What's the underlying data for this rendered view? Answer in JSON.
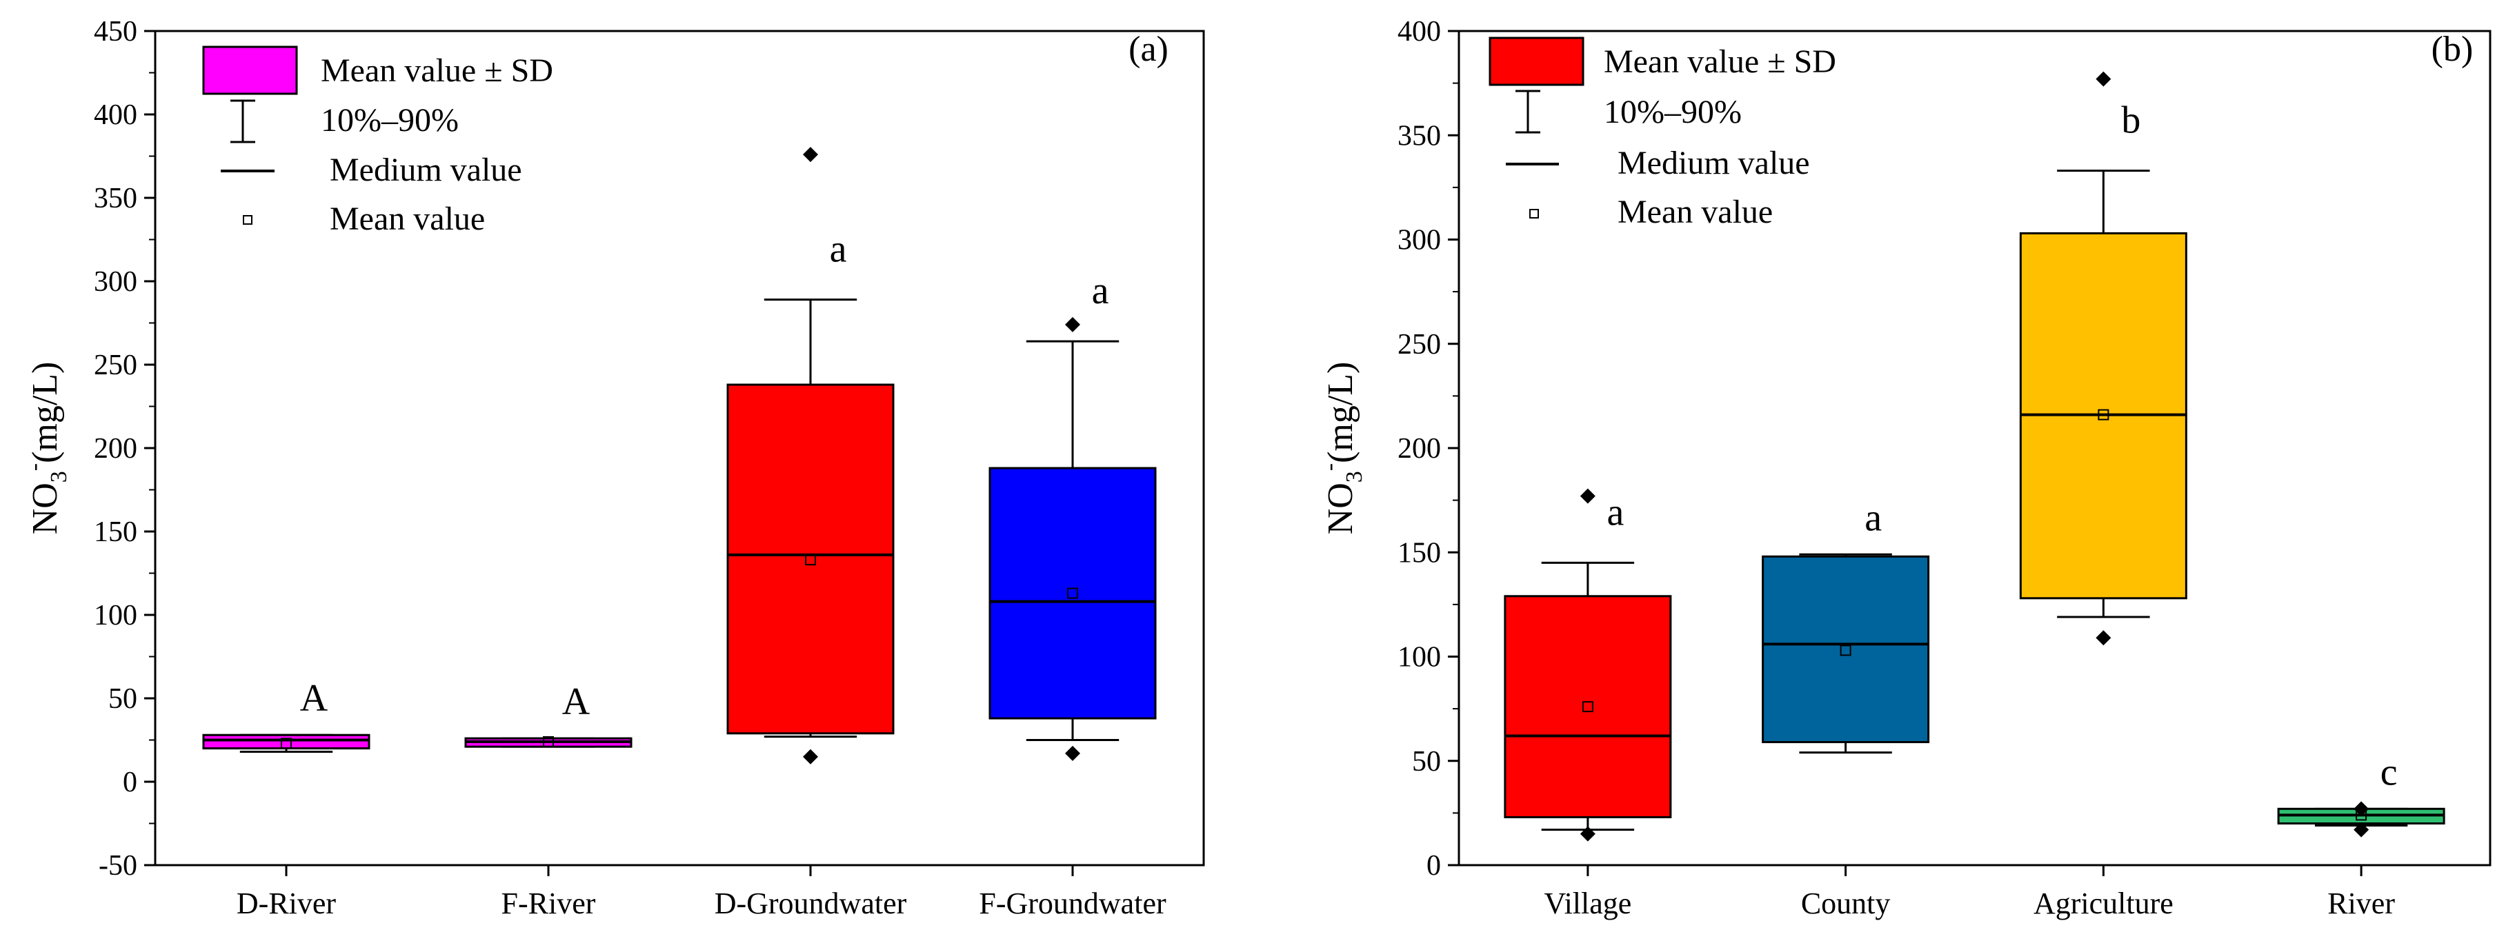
{
  "chart_data": [
    {
      "type": "box",
      "panel_label": "(a)",
      "ylabel_base": "NO",
      "ylabel_sub": "3",
      "ylabel_sup": "-",
      "ylabel_unit": "(mg/L)",
      "ylim": [
        -50,
        450
      ],
      "yticks": [
        -50,
        0,
        50,
        100,
        150,
        200,
        250,
        300,
        350,
        400,
        450
      ],
      "legend": {
        "box_label": "Mean value ± SD",
        "whisker_label": "10%–90%",
        "median_label": "Medium value",
        "mean_label": "Mean value",
        "swatch_color": "#ff00ff"
      },
      "categories": [
        "D-River",
        "F-River",
        "D-Groundwater",
        "F-Groundwater"
      ],
      "boxes": [
        {
          "name": "D-River",
          "color": "#ff00ff",
          "q1": 20,
          "q3": 28,
          "median": 25,
          "mean": 23,
          "whisker_low": 18,
          "whisker_high": 28,
          "outliers": [],
          "letter": "A"
        },
        {
          "name": "F-River",
          "color": "#ff00ff",
          "q1": 21,
          "q3": 26,
          "median": 24,
          "mean": 24,
          "whisker_low": 21,
          "whisker_high": 26,
          "outliers": [],
          "letter": "A"
        },
        {
          "name": "D-Groundwater",
          "color": "#ff0000",
          "q1": 29,
          "q3": 238,
          "median": 136,
          "mean": 133,
          "whisker_low": 27,
          "whisker_high": 289,
          "outliers": [
            15,
            376
          ],
          "letter": "a"
        },
        {
          "name": "F-Groundwater",
          "color": "#0000ff",
          "q1": 38,
          "q3": 188,
          "median": 108,
          "mean": 113,
          "whisker_low": 25,
          "whisker_high": 264,
          "outliers": [
            17,
            274
          ],
          "letter": "a"
        }
      ]
    },
    {
      "type": "box",
      "panel_label": "(b)",
      "ylabel_base": "NO",
      "ylabel_sub": "3",
      "ylabel_sup": "-",
      "ylabel_unit": "(mg/L)",
      "ylim": [
        0,
        400
      ],
      "yticks": [
        0,
        50,
        100,
        150,
        200,
        250,
        300,
        350,
        400
      ],
      "legend": {
        "box_label": "Mean value ± SD",
        "whisker_label": "10%–90%",
        "median_label": "Medium value",
        "mean_label": "Mean value",
        "swatch_color": "#ff0000"
      },
      "categories": [
        "Village",
        "County",
        "Agriculture",
        "River"
      ],
      "boxes": [
        {
          "name": "Village",
          "color": "#ff0000",
          "q1": 23,
          "q3": 129,
          "median": 62,
          "mean": 76,
          "whisker_low": 17,
          "whisker_high": 145,
          "outliers": [
            15,
            177
          ],
          "letter": "a"
        },
        {
          "name": "County",
          "color": "#00649c",
          "q1": 59,
          "q3": 148,
          "median": 106,
          "mean": 103,
          "whisker_low": 54,
          "whisker_high": 149,
          "outliers": [],
          "letter": "a"
        },
        {
          "name": "Agriculture",
          "color": "#ffc000",
          "q1": 128,
          "q3": 303,
          "median": 216,
          "mean": 216,
          "whisker_low": 119,
          "whisker_high": 333,
          "outliers": [
            109,
            377
          ],
          "letter": "b"
        },
        {
          "name": "River",
          "color": "#2fbf71",
          "q1": 20,
          "q3": 27,
          "median": 24,
          "mean": 24,
          "whisker_low": 19,
          "whisker_high": 27,
          "outliers": [
            17,
            27
          ],
          "letter": "c"
        }
      ]
    }
  ]
}
